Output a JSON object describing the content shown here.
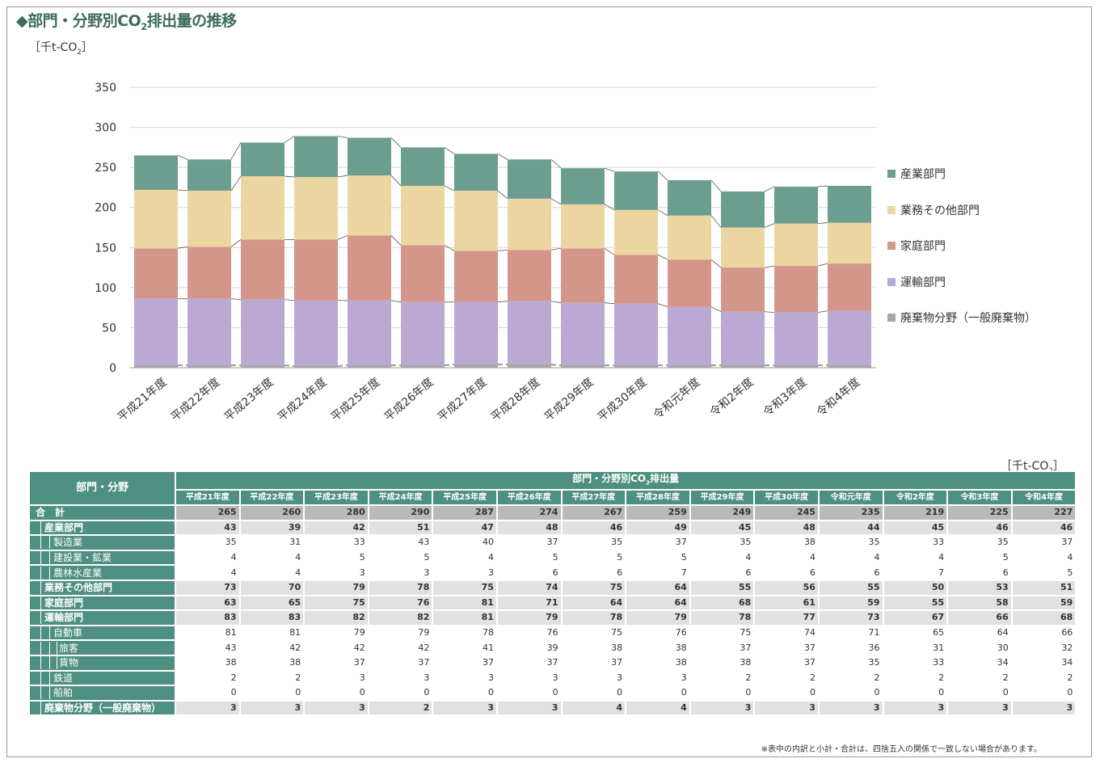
{
  "title": "◆部門・分野別CO",
  "title_sub": "2",
  "title_suffix": "排出量の推移",
  "chart_unit": "［千t-CO",
  "chart_unit_sub": "2",
  "chart_unit_close": "］",
  "table_unit": "［千t-CO",
  "table_unit_sub": "2",
  "table_unit_close": "］",
  "colors": {
    "industry": "#6b9e8f",
    "commercial": "#ebd6a2",
    "household": "#d4968a",
    "transport": "#baa9d2",
    "waste": "#a6a6a6",
    "header_bg": "#4d8f80"
  },
  "chart_data": {
    "type": "bar",
    "stacked": true,
    "categories": [
      "平成21年度",
      "平成22年度",
      "平成23年度",
      "平成24年度",
      "平成25年度",
      "平成26年度",
      "平成27年度",
      "平成28年度",
      "平成29年度",
      "平成30年度",
      "令和元年度",
      "令和2年度",
      "令和3年度",
      "令和4年度"
    ],
    "series": [
      {
        "name": "廃棄物分野（一般廃棄物）",
        "color": "#a6a6a6",
        "values": [
          3,
          3,
          3,
          2,
          3,
          3,
          4,
          4,
          3,
          3,
          3,
          3,
          3,
          3
        ]
      },
      {
        "name": "運輸部門",
        "color": "#baa9d2",
        "values": [
          83,
          83,
          82,
          82,
          81,
          79,
          78,
          79,
          78,
          77,
          73,
          67,
          66,
          68
        ]
      },
      {
        "name": "家庭部門",
        "color": "#d4968a",
        "values": [
          63,
          65,
          75,
          76,
          81,
          71,
          64,
          64,
          68,
          61,
          59,
          55,
          58,
          59
        ]
      },
      {
        "name": "業務その他部門",
        "color": "#ebd6a2",
        "values": [
          73,
          70,
          79,
          78,
          75,
          74,
          75,
          64,
          55,
          56,
          55,
          50,
          53,
          51
        ]
      },
      {
        "name": "産業部門",
        "color": "#6b9e8f",
        "values": [
          43,
          39,
          42,
          51,
          47,
          48,
          46,
          49,
          45,
          48,
          44,
          45,
          46,
          46
        ]
      }
    ],
    "ylim": [
      0,
      350
    ],
    "yticks": [
      "0",
      "50",
      "100",
      "150",
      "200",
      "250",
      "300",
      "350"
    ],
    "legend_position": "right",
    "connector_lines": true
  },
  "legend": [
    {
      "label": "産業部門",
      "color": "#6b9e8f"
    },
    {
      "label": "業務その他部門",
      "color": "#ebd6a2"
    },
    {
      "label": "家庭部門",
      "color": "#d4968a"
    },
    {
      "label": "運輸部門",
      "color": "#baa9d2"
    },
    {
      "label": "廃棄物分野（一般廃棄物）",
      "color": "#a6a6a6"
    }
  ],
  "table": {
    "corner": "部門・分野",
    "span_header": "部門・分野別CO",
    "span_header_sub": "2",
    "span_header_suffix": "排出量",
    "years": [
      "平成21年度",
      "平成22年度",
      "平成23年度",
      "平成24年度",
      "平成25年度",
      "平成26年度",
      "平成27年度",
      "平成28年度",
      "平成29年度",
      "平成30年度",
      "令和元年度",
      "令和2年度",
      "令和3年度",
      "令和4年度"
    ],
    "rows": [
      {
        "label": "合　計",
        "type": "total",
        "indent": 0,
        "values": [
          "265",
          "260",
          "280",
          "290",
          "287",
          "274",
          "267",
          "259",
          "249",
          "245",
          "235",
          "219",
          "225",
          "227"
        ]
      },
      {
        "label": "産業部門",
        "type": "main",
        "indent": 1,
        "values": [
          "43",
          "39",
          "42",
          "51",
          "47",
          "48",
          "46",
          "49",
          "45",
          "48",
          "44",
          "45",
          "46",
          "46"
        ]
      },
      {
        "label": "製造業",
        "type": "sub",
        "indent": 2,
        "values": [
          "35",
          "31",
          "33",
          "43",
          "40",
          "37",
          "35",
          "37",
          "35",
          "38",
          "35",
          "33",
          "35",
          "37"
        ]
      },
      {
        "label": "建設業・鉱業",
        "type": "sub",
        "indent": 2,
        "values": [
          "4",
          "4",
          "5",
          "5",
          "4",
          "5",
          "5",
          "5",
          "4",
          "4",
          "4",
          "4",
          "5",
          "4"
        ]
      },
      {
        "label": "農林水産業",
        "type": "sub",
        "indent": 2,
        "values": [
          "4",
          "4",
          "3",
          "3",
          "3",
          "6",
          "6",
          "7",
          "6",
          "6",
          "6",
          "7",
          "6",
          "5"
        ]
      },
      {
        "label": "業務その他部門",
        "type": "main",
        "indent": 1,
        "values": [
          "73",
          "70",
          "79",
          "78",
          "75",
          "74",
          "75",
          "64",
          "55",
          "56",
          "55",
          "50",
          "53",
          "51"
        ]
      },
      {
        "label": "家庭部門",
        "type": "main",
        "indent": 1,
        "values": [
          "63",
          "65",
          "75",
          "76",
          "81",
          "71",
          "64",
          "64",
          "68",
          "61",
          "59",
          "55",
          "58",
          "59"
        ]
      },
      {
        "label": "運輸部門",
        "type": "main",
        "indent": 1,
        "values": [
          "83",
          "83",
          "82",
          "82",
          "81",
          "79",
          "78",
          "79",
          "78",
          "77",
          "73",
          "67",
          "66",
          "68"
        ]
      },
      {
        "label": "自動車",
        "type": "sub",
        "indent": 2,
        "values": [
          "81",
          "81",
          "79",
          "79",
          "78",
          "76",
          "75",
          "76",
          "75",
          "74",
          "71",
          "65",
          "64",
          "66"
        ]
      },
      {
        "label": "旅客",
        "type": "sub",
        "indent": 3,
        "values": [
          "43",
          "42",
          "42",
          "42",
          "41",
          "39",
          "38",
          "38",
          "37",
          "37",
          "36",
          "31",
          "30",
          "32"
        ]
      },
      {
        "label": "貨物",
        "type": "sub",
        "indent": 3,
        "values": [
          "38",
          "38",
          "37",
          "37",
          "37",
          "37",
          "37",
          "38",
          "38",
          "37",
          "35",
          "33",
          "34",
          "34"
        ]
      },
      {
        "label": "鉄道",
        "type": "sub",
        "indent": 2,
        "values": [
          "2",
          "2",
          "3",
          "3",
          "3",
          "3",
          "3",
          "3",
          "2",
          "2",
          "2",
          "2",
          "2",
          "2"
        ]
      },
      {
        "label": "船舶",
        "type": "sub",
        "indent": 2,
        "values": [
          "0",
          "0",
          "0",
          "0",
          "0",
          "0",
          "0",
          "0",
          "0",
          "0",
          "0",
          "0",
          "0",
          "0"
        ]
      },
      {
        "label": "廃棄物分野（一般廃棄物）",
        "type": "main",
        "indent": 1,
        "values": [
          "3",
          "3",
          "3",
          "2",
          "3",
          "3",
          "4",
          "4",
          "3",
          "3",
          "3",
          "3",
          "3",
          "3"
        ]
      }
    ]
  },
  "note": "※表中の内訳と小計・合計は、四捨五入の関係で一致しない場合があります。"
}
